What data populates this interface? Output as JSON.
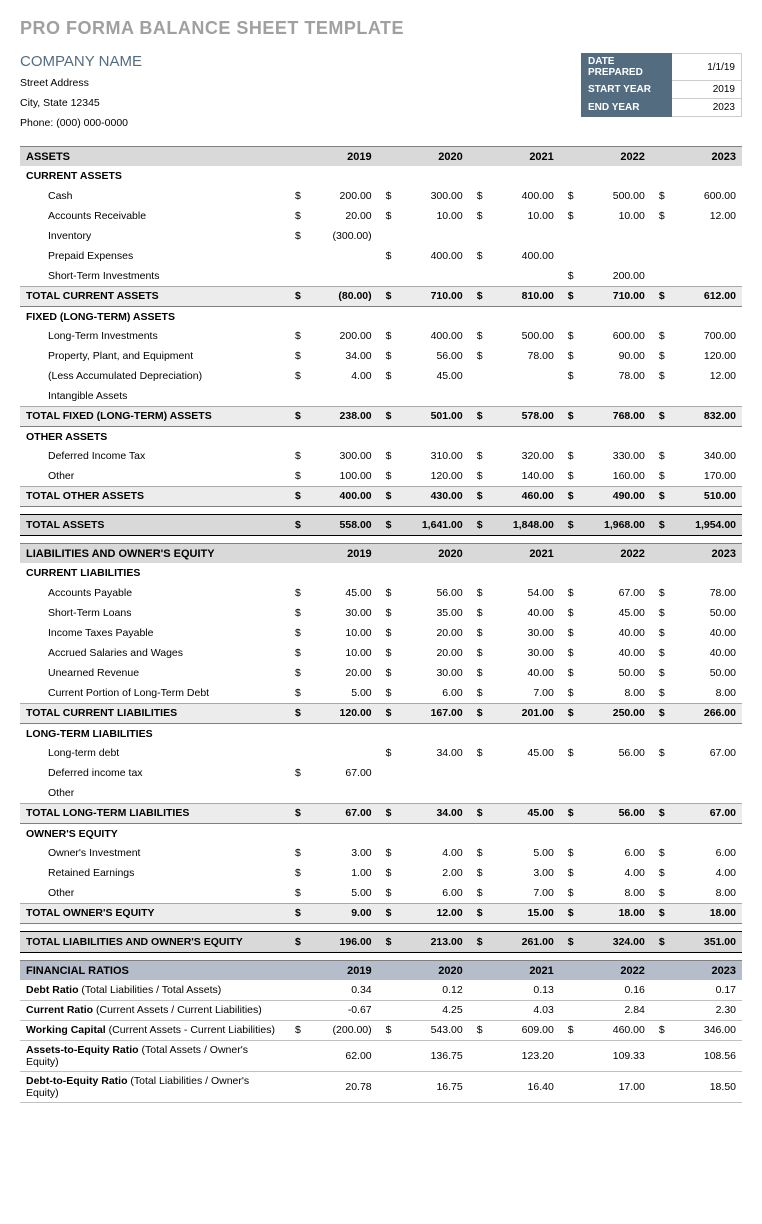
{
  "title": "PRO FORMA BALANCE SHEET TEMPLATE",
  "company": "COMPANY NAME",
  "address": {
    "street": "Street Address",
    "citystate": "City, State  12345",
    "phone": "Phone: (000) 000-0000"
  },
  "meta": {
    "datePrepLbl": "DATE PREPARED",
    "datePrep": "1/1/19",
    "startLbl": "START YEAR",
    "start": "2019",
    "endLbl": "END YEAR",
    "end": "2023"
  },
  "years": [
    "2019",
    "2020",
    "2021",
    "2022",
    "2023"
  ],
  "sections": {
    "assetsHead": "ASSETS",
    "curAssets": {
      "head": "CURRENT ASSETS",
      "rows": [
        {
          "l": "Cash",
          "v": [
            "200.00",
            "300.00",
            "400.00",
            "500.00",
            "600.00"
          ]
        },
        {
          "l": "Accounts Receivable",
          "v": [
            "20.00",
            "10.00",
            "10.00",
            "10.00",
            "12.00"
          ]
        },
        {
          "l": "Inventory",
          "v": [
            "(300.00)",
            "",
            "",
            "",
            ""
          ],
          "nod": [
            false,
            true,
            true,
            true,
            true
          ]
        },
        {
          "l": "Prepaid Expenses",
          "v": [
            "",
            "400.00",
            "400.00",
            "",
            ""
          ],
          "nod": [
            true,
            false,
            false,
            true,
            true
          ]
        },
        {
          "l": "Short-Term Investments",
          "v": [
            "",
            "",
            "",
            "200.00",
            ""
          ],
          "nod": [
            true,
            true,
            true,
            false,
            true
          ]
        }
      ],
      "tot": {
        "l": "TOTAL CURRENT ASSETS",
        "v": [
          "(80.00)",
          "710.00",
          "810.00",
          "710.00",
          "612.00"
        ]
      }
    },
    "fixAssets": {
      "head": "FIXED (LONG-TERM) ASSETS",
      "rows": [
        {
          "l": "Long-Term Investments",
          "v": [
            "200.00",
            "400.00",
            "500.00",
            "600.00",
            "700.00"
          ]
        },
        {
          "l": "Property, Plant, and Equipment",
          "v": [
            "34.00",
            "56.00",
            "78.00",
            "90.00",
            "120.00"
          ]
        },
        {
          "l": "(Less Accumulated Depreciation)",
          "v": [
            "4.00",
            "45.00",
            "",
            "78.00",
            "12.00"
          ],
          "nod": [
            false,
            false,
            true,
            false,
            false
          ]
        },
        {
          "l": "Intangible Assets",
          "v": [
            "",
            "",
            "",
            "",
            ""
          ],
          "nod": [
            true,
            true,
            true,
            true,
            true
          ]
        }
      ],
      "tot": {
        "l": "TOTAL FIXED (LONG-TERM) ASSETS",
        "v": [
          "238.00",
          "501.00",
          "578.00",
          "768.00",
          "832.00"
        ]
      }
    },
    "othAssets": {
      "head": "OTHER ASSETS",
      "rows": [
        {
          "l": "Deferred Income Tax",
          "v": [
            "300.00",
            "310.00",
            "320.00",
            "330.00",
            "340.00"
          ]
        },
        {
          "l": "Other",
          "v": [
            "100.00",
            "120.00",
            "140.00",
            "160.00",
            "170.00"
          ]
        }
      ],
      "tot": {
        "l": "TOTAL OTHER ASSETS",
        "v": [
          "400.00",
          "430.00",
          "460.00",
          "490.00",
          "510.00"
        ]
      }
    },
    "totAssets": {
      "l": "TOTAL ASSETS",
      "v": [
        "558.00",
        "1,641.00",
        "1,848.00",
        "1,968.00",
        "1,954.00"
      ]
    },
    "liabHead": "LIABILITIES AND OWNER'S EQUITY",
    "curLiab": {
      "head": "CURRENT LIABILITIES",
      "rows": [
        {
          "l": "Accounts Payable",
          "v": [
            "45.00",
            "56.00",
            "54.00",
            "67.00",
            "78.00"
          ]
        },
        {
          "l": "Short-Term Loans",
          "v": [
            "30.00",
            "35.00",
            "40.00",
            "45.00",
            "50.00"
          ]
        },
        {
          "l": "Income Taxes Payable",
          "v": [
            "10.00",
            "20.00",
            "30.00",
            "40.00",
            "40.00"
          ]
        },
        {
          "l": "Accrued Salaries and Wages",
          "v": [
            "10.00",
            "20.00",
            "30.00",
            "40.00",
            "40.00"
          ]
        },
        {
          "l": "Unearned Revenue",
          "v": [
            "20.00",
            "30.00",
            "40.00",
            "50.00",
            "50.00"
          ]
        },
        {
          "l": "Current Portion of Long-Term Debt",
          "v": [
            "5.00",
            "6.00",
            "7.00",
            "8.00",
            "8.00"
          ]
        }
      ],
      "tot": {
        "l": "TOTAL CURRENT LIABILITIES",
        "v": [
          "120.00",
          "167.00",
          "201.00",
          "250.00",
          "266.00"
        ]
      }
    },
    "ltLiab": {
      "head": "LONG-TERM LIABILITIES",
      "rows": [
        {
          "l": "Long-term debt",
          "v": [
            "",
            "34.00",
            "45.00",
            "56.00",
            "67.00"
          ],
          "nod": [
            true,
            false,
            false,
            false,
            false
          ]
        },
        {
          "l": "Deferred income tax",
          "v": [
            "67.00",
            "",
            "",
            "",
            ""
          ],
          "nod": [
            false,
            true,
            true,
            true,
            true
          ]
        },
        {
          "l": "Other",
          "v": [
            "",
            "",
            "",
            "",
            ""
          ],
          "nod": [
            true,
            true,
            true,
            true,
            true
          ]
        }
      ],
      "tot": {
        "l": "TOTAL LONG-TERM LIABILITIES",
        "v": [
          "67.00",
          "34.00",
          "45.00",
          "56.00",
          "67.00"
        ]
      }
    },
    "equity": {
      "head": "OWNER'S EQUITY",
      "rows": [
        {
          "l": "Owner's Investment",
          "v": [
            "3.00",
            "4.00",
            "5.00",
            "6.00",
            "6.00"
          ]
        },
        {
          "l": "Retained Earnings",
          "v": [
            "1.00",
            "2.00",
            "3.00",
            "4.00",
            "4.00"
          ]
        },
        {
          "l": "Other",
          "v": [
            "5.00",
            "6.00",
            "7.00",
            "8.00",
            "8.00"
          ]
        }
      ],
      "tot": {
        "l": "TOTAL OWNER'S EQUITY",
        "v": [
          "9.00",
          "12.00",
          "15.00",
          "18.00",
          "18.00"
        ]
      }
    },
    "totLiab": {
      "l": "TOTAL LIABILITIES AND OWNER'S EQUITY",
      "v": [
        "196.00",
        "213.00",
        "261.00",
        "324.00",
        "351.00"
      ]
    },
    "finHead": "FINANCIAL RATIOS",
    "ratios": [
      {
        "l": "Debt Ratio",
        "d": " (Total Liabilities / Total Assets)",
        "v": [
          "0.34",
          "0.12",
          "0.13",
          "0.16",
          "0.17"
        ],
        "dol": false
      },
      {
        "l": "Current Ratio",
        "d": " (Current Assets / Current Liabilities)",
        "v": [
          "-0.67",
          "4.25",
          "4.03",
          "2.84",
          "2.30"
        ],
        "dol": false
      },
      {
        "l": "Working Capital",
        "d": " (Current Assets - Current Liabilities)",
        "v": [
          "(200.00)",
          "543.00",
          "609.00",
          "460.00",
          "346.00"
        ],
        "dol": true
      },
      {
        "l": "Assets-to-Equity Ratio",
        "d": " (Total Assets / Owner's Equity)",
        "v": [
          "62.00",
          "136.75",
          "123.20",
          "109.33",
          "108.56"
        ],
        "dol": false
      },
      {
        "l": "Debt-to-Equity Ratio",
        "d": " (Total Liabilities / Owner's Equity)",
        "v": [
          "20.78",
          "16.75",
          "16.40",
          "17.00",
          "18.50"
        ],
        "dol": false
      }
    ]
  },
  "styling": {
    "pageWidth": 762,
    "pageHeight": 1224,
    "colors": {
      "title": "#a0a0a0",
      "company": "#536c80",
      "metaLabelBg": "#536c80",
      "metaLabelFg": "#ffffff",
      "sectionBg": "#d9d9d9",
      "totalBg": "#ececec",
      "finBg": "#b4bdc9",
      "border": "#808080",
      "rowBorder": "#aaaaaa"
    },
    "fonts": {
      "family": "Century Gothic",
      "titleSize": 18,
      "h2Size": 15,
      "bodySize": 10.5
    },
    "columns": {
      "labelWidth": 332,
      "dollarWidth": 16,
      "yearWidth": 78,
      "yearCount": 5
    }
  }
}
